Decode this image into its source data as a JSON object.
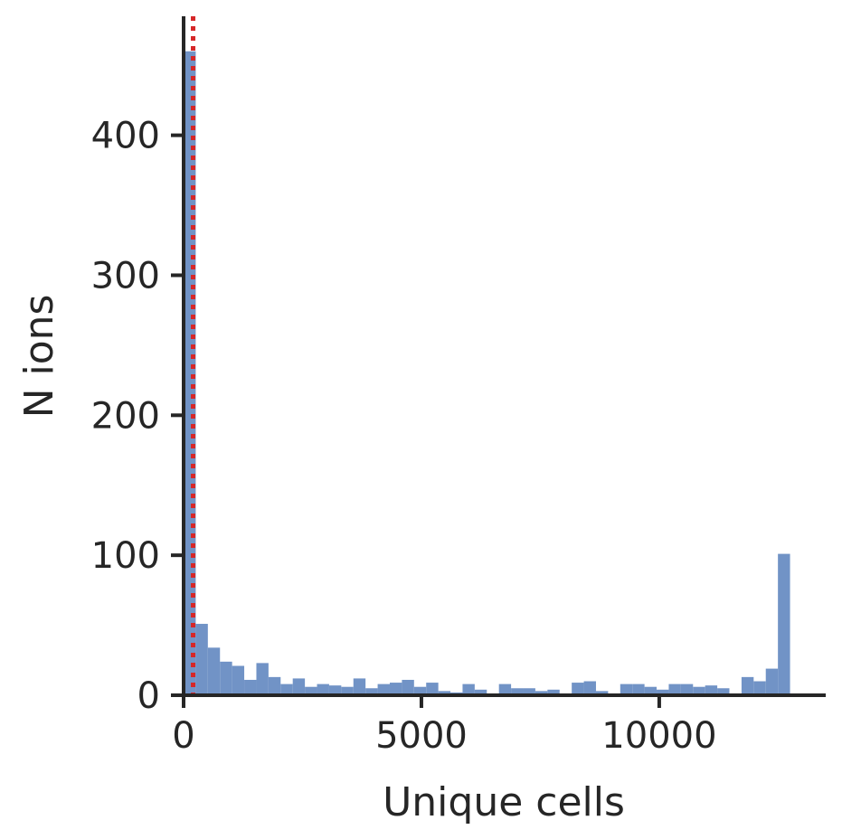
{
  "chart_data": {
    "type": "bar",
    "title": "",
    "xlabel": "Unique cells",
    "ylabel": "N ions",
    "xlim": [
      0,
      13500
    ],
    "ylim": [
      0,
      485
    ],
    "xticks": [
      0,
      5000,
      10000
    ],
    "yticks": [
      0,
      100,
      200,
      300,
      400
    ],
    "bar_color": "#7193c6",
    "bin_width": 255,
    "bin_start": 0,
    "values": [
      460,
      51,
      34,
      24,
      21,
      11,
      23,
      13,
      8,
      12,
      6,
      8,
      7,
      6,
      12,
      5,
      8,
      9,
      11,
      6,
      9,
      3,
      2,
      8,
      4,
      1,
      8,
      5,
      5,
      3,
      4,
      1,
      9,
      10,
      3,
      1,
      8,
      8,
      6,
      4,
      8,
      8,
      6,
      7,
      5,
      1,
      13,
      10,
      19,
      101
    ],
    "threshold": {
      "x": 200,
      "color": "#d62728",
      "style": "dotted"
    },
    "grid": false,
    "legend": "none"
  }
}
